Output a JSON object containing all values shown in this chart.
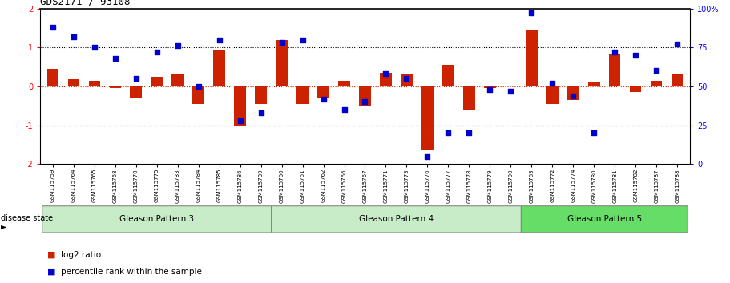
{
  "title": "GDS2171 / 93108",
  "samples": [
    "GSM115759",
    "GSM115764",
    "GSM115765",
    "GSM115768",
    "GSM115770",
    "GSM115775",
    "GSM115783",
    "GSM115784",
    "GSM115785",
    "GSM115786",
    "GSM115789",
    "GSM115760",
    "GSM115761",
    "GSM115762",
    "GSM115766",
    "GSM115767",
    "GSM115771",
    "GSM115773",
    "GSM115776",
    "GSM115777",
    "GSM115778",
    "GSM115779",
    "GSM115790",
    "GSM115763",
    "GSM115772",
    "GSM115774",
    "GSM115780",
    "GSM115781",
    "GSM115782",
    "GSM115787",
    "GSM115788"
  ],
  "log2_ratio": [
    0.45,
    0.18,
    0.15,
    -0.05,
    -0.3,
    0.25,
    0.3,
    -0.45,
    0.95,
    -1.0,
    -0.45,
    1.2,
    -0.45,
    -0.3,
    0.15,
    -0.5,
    0.35,
    0.3,
    -1.65,
    0.55,
    -0.6,
    -0.05,
    0.0,
    1.45,
    -0.45,
    -0.35,
    0.1,
    0.85,
    -0.15,
    0.15,
    0.3
  ],
  "percentile_rank": [
    88,
    82,
    75,
    68,
    55,
    72,
    76,
    50,
    80,
    28,
    33,
    78,
    80,
    42,
    35,
    40,
    58,
    55,
    5,
    20,
    20,
    48,
    47,
    97,
    52,
    44,
    20,
    72,
    70,
    60,
    77
  ],
  "groups": [
    {
      "label": "Gleason Pattern 3",
      "start": 0,
      "end": 11
    },
    {
      "label": "Gleason Pattern 4",
      "start": 11,
      "end": 23
    },
    {
      "label": "Gleason Pattern 5",
      "start": 23,
      "end": 31
    }
  ],
  "group_colors": [
    "#c8ebc8",
    "#c8ebc8",
    "#66dd66"
  ],
  "ylim": [
    -2,
    2
  ],
  "y2lim": [
    0,
    100
  ],
  "yticks": [
    -2,
    -1,
    0,
    1,
    2
  ],
  "y2ticks": [
    0,
    25,
    50,
    75,
    100
  ],
  "dotted_lines_black": [
    -1,
    1
  ],
  "dotted_line_red": 0,
  "bar_color": "#CC2200",
  "dot_color": "#0000CC",
  "bar_width": 0.55,
  "legend_items": [
    {
      "label": "log2 ratio",
      "color": "#CC2200"
    },
    {
      "label": "percentile rank within the sample",
      "color": "#0000CC"
    }
  ],
  "disease_state_label": "disease state"
}
